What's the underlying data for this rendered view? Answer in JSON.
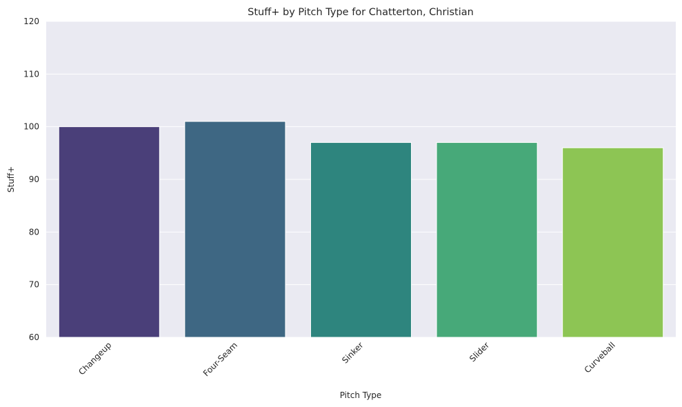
{
  "chart_data": {
    "type": "bar",
    "title": "Stuff+ by Pitch Type for Chatterton, Christian",
    "xlabel": "Pitch Type",
    "ylabel": "Stuff+",
    "categories": [
      "Changeup",
      "Four-Seam",
      "Sinker",
      "Slider",
      "Curveball"
    ],
    "values": [
      100,
      101,
      97,
      97,
      96
    ],
    "colors": [
      "#4a3f79",
      "#3e6783",
      "#2e857e",
      "#47a979",
      "#8dc554"
    ],
    "ylim": [
      60,
      120
    ],
    "yticks": [
      "60",
      "70",
      "80",
      "90",
      "100",
      "110",
      "120"
    ],
    "grid": true,
    "legend": "none"
  }
}
